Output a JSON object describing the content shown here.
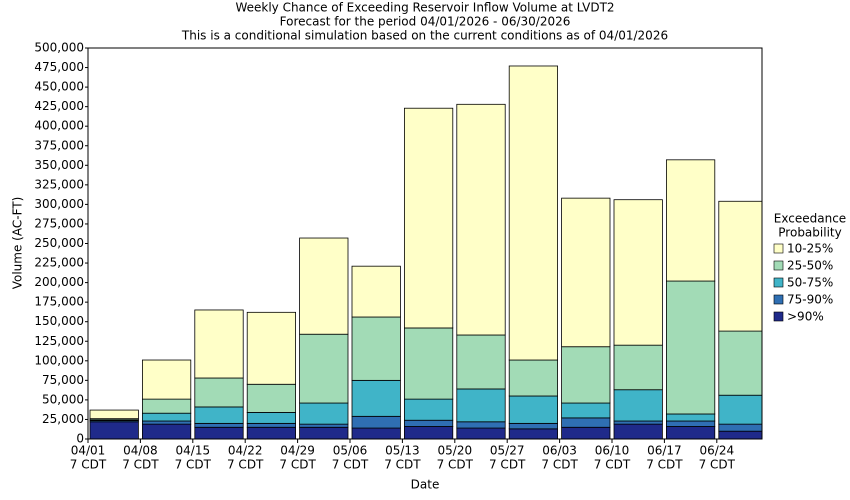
{
  "chart_data": {
    "type": "stacked-bar",
    "title": [
      "Weekly Chance of Exceeding Reservoir Inflow Volume at LVDT2",
      "Forecast for the period 04/01/2026 - 06/30/2026",
      "This is a conditional simulation based on the current conditions as of 04/01/2026"
    ],
    "x_label": "Date",
    "y_label": "Volume (AC-FT)",
    "categories": [
      "04/01",
      "04/08",
      "04/15",
      "04/22",
      "04/29",
      "05/06",
      "05/13",
      "05/20",
      "05/27",
      "06/03",
      "06/10",
      "06/17",
      "06/24"
    ],
    "category_sublabels": [
      "7 CDT",
      "7 CDT",
      "7 CDT",
      "7 CDT",
      "7 CDT",
      "7 CDT",
      "7 CDT",
      "7 CDT",
      "7 CDT",
      "7 CDT",
      "7 CDT",
      "7 CDT",
      "7 CDT"
    ],
    "legend_title": [
      "Exceedance",
      "Probability"
    ],
    "series": [
      {
        "name": ">90%",
        "color": "#1f2a8a",
        "values": [
          22000,
          19000,
          15000,
          15000,
          15000,
          14000,
          16000,
          14000,
          13000,
          15000,
          19000,
          16000,
          10000
        ]
      },
      {
        "name": "75-90%",
        "color": "#2f6fb3",
        "values": [
          1500,
          4000,
          5000,
          5000,
          4000,
          15000,
          8000,
          8000,
          7000,
          12000,
          4000,
          7000,
          9000
        ]
      },
      {
        "name": "50-75%",
        "color": "#40b4c8",
        "values": [
          1000,
          10000,
          21000,
          14000,
          27000,
          46000,
          27000,
          42000,
          35000,
          19000,
          40000,
          9000,
          37000
        ]
      },
      {
        "name": "25-50%",
        "color": "#a2dbb6",
        "values": [
          1500,
          18000,
          37000,
          36000,
          88000,
          81000,
          91000,
          69000,
          46000,
          72000,
          57000,
          170000,
          82000
        ]
      },
      {
        "name": "10-25%",
        "color": "#ffffc8",
        "values": [
          11000,
          50000,
          87000,
          92000,
          123000,
          65000,
          281000,
          295000,
          376000,
          190000,
          186000,
          155000,
          166000
        ]
      }
    ],
    "ylim": [
      0,
      500000
    ],
    "yticks": [
      0,
      {
        "value": 25000,
        "label": "25,000"
      },
      {
        "value": 50000,
        "label": "50,000"
      },
      {
        "value": 75000,
        "label": "75,000"
      },
      {
        "value": 100000,
        "label": "100,000"
      },
      {
        "value": 125000,
        "label": "125,000"
      },
      {
        "value": 150000,
        "label": "150,000"
      },
      {
        "value": 175000,
        "label": "175,000"
      },
      {
        "value": 200000,
        "label": "200,000"
      },
      {
        "value": 225000,
        "label": "225,000"
      },
      {
        "value": 250000,
        "label": "250,000"
      },
      {
        "value": 275000,
        "label": "275,000"
      },
      {
        "value": 300000,
        "label": "300,000"
      },
      {
        "value": 325000,
        "label": "325,000"
      },
      {
        "value": 350000,
        "label": "350,000"
      },
      {
        "value": 375000,
        "label": "375,000"
      },
      {
        "value": 400000,
        "label": "400,000"
      },
      {
        "value": 425000,
        "label": "425,000"
      },
      {
        "value": 450000,
        "label": "450,000"
      },
      {
        "value": 475000,
        "label": "475,000"
      },
      {
        "value": 500000,
        "label": "500,000"
      }
    ]
  }
}
